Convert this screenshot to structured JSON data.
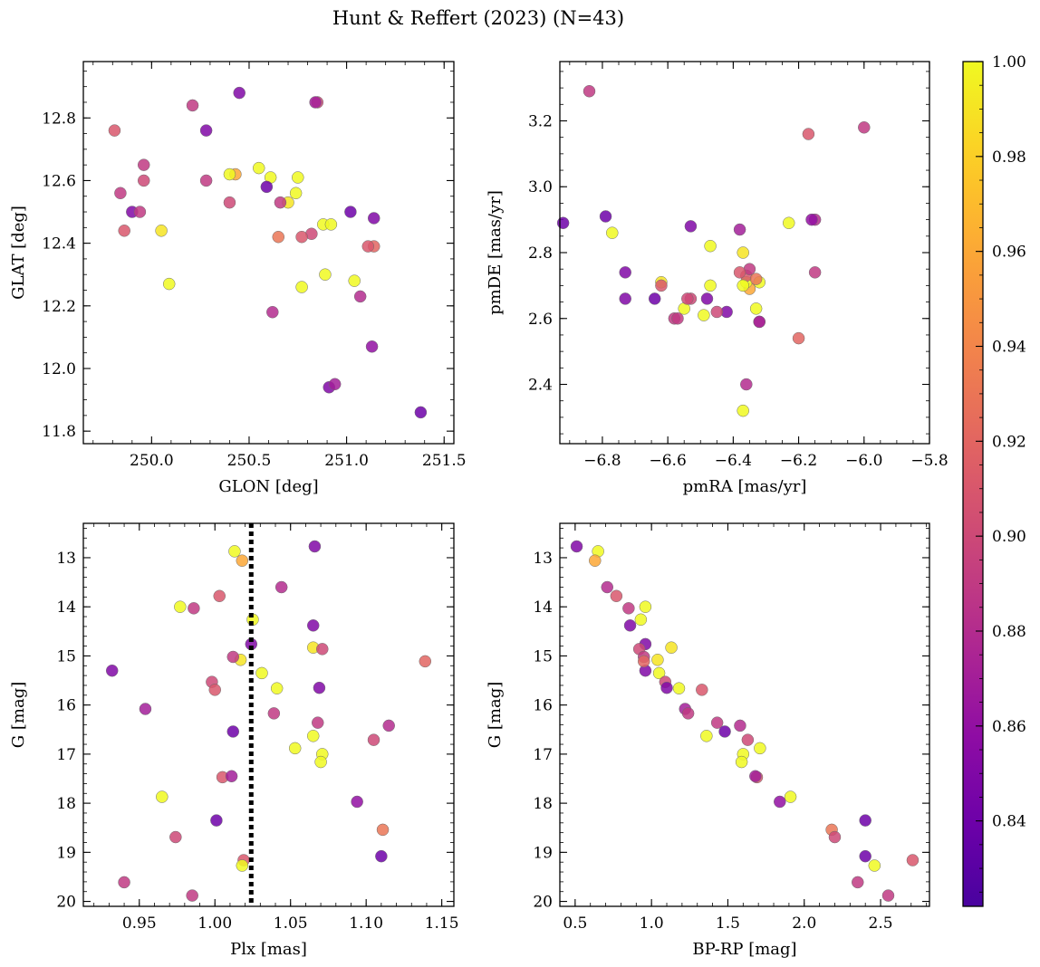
{
  "title": "Hunt & Reffert (2023) (N=43)",
  "chart_data": {
    "type": "scatter",
    "colorbar": {
      "colormap": "plasma",
      "range": [
        0.822,
        1.0
      ],
      "ticks": [
        0.84,
        0.86,
        0.88,
        0.9,
        0.92,
        0.94,
        0.96,
        0.98,
        1.0
      ],
      "tick_labels": [
        "0.84",
        "0.86",
        "0.88",
        "0.90",
        "0.92",
        "0.94",
        "0.96",
        "0.98",
        "1.00"
      ]
    },
    "columns": [
      "glon",
      "glat",
      "pmra",
      "pmde",
      "plx",
      "gmag",
      "bprp",
      "prob"
    ],
    "stars": [
      [
        250.55,
        12.64,
        -6.23,
        2.89,
        1.013,
        12.87,
        0.65,
        1.0
      ],
      [
        250.43,
        12.62,
        -6.35,
        2.69,
        1.018,
        13.06,
        0.63,
        0.96
      ],
      [
        250.45,
        12.88,
        -6.53,
        2.88,
        1.066,
        12.77,
        0.51,
        0.85
      ],
      [
        250.62,
        12.18,
        -6.36,
        2.4,
        1.044,
        13.6,
        0.71,
        0.88
      ],
      [
        249.81,
        12.76,
        -6.17,
        3.16,
        1.003,
        13.78,
        0.77,
        0.91
      ],
      [
        250.4,
        12.62,
        -6.47,
        2.82,
        0.977,
        14.0,
        0.96,
        1.0
      ],
      [
        250.21,
        12.84,
        -6.0,
        3.18,
        0.986,
        14.03,
        0.85,
        0.89
      ],
      [
        250.89,
        12.3,
        -6.49,
        2.61,
        1.025,
        14.26,
        0.93,
        1.0
      ],
      [
        250.91,
        11.94,
        -6.73,
        2.66,
        1.065,
        14.38,
        0.86,
        0.85
      ],
      [
        250.28,
        12.76,
        -6.48,
        2.66,
        1.024,
        14.76,
        0.96,
        0.85
      ],
      [
        250.7,
        12.53,
        -6.62,
        2.71,
        1.065,
        14.83,
        1.13,
        0.99
      ],
      [
        249.96,
        12.6,
        -6.53,
        2.66,
        1.071,
        14.86,
        0.92,
        0.9
      ],
      [
        250.05,
        12.44,
        -6.37,
        2.8,
        1.017,
        15.08,
        1.04,
        0.99
      ],
      [
        249.96,
        12.65,
        -6.58,
        2.6,
        1.012,
        15.02,
        0.95,
        0.89
      ],
      [
        250.61,
        12.61,
        -6.36,
        2.71,
        1.031,
        15.35,
        1.05,
        1.0
      ],
      [
        249.9,
        12.5,
        -6.73,
        2.74,
        0.932,
        15.3,
        0.96,
        0.85
      ],
      [
        251.14,
        12.39,
        -6.2,
        2.54,
        1.139,
        15.11,
        0.95,
        0.92
      ],
      [
        250.82,
        12.43,
        -6.32,
        2.59,
        0.998,
        15.53,
        1.09,
        0.9
      ],
      [
        250.77,
        12.42,
        -6.36,
        2.73,
        1.0,
        15.69,
        1.33,
        0.91
      ],
      [
        250.77,
        12.26,
        -6.32,
        2.71,
        1.041,
        15.66,
        1.18,
        1.0
      ],
      [
        251.14,
        12.48,
        -6.42,
        2.62,
        1.069,
        15.65,
        1.1,
        0.85
      ],
      [
        250.94,
        11.95,
        -6.38,
        2.87,
        0.954,
        16.08,
        1.22,
        0.87
      ],
      [
        249.84,
        12.56,
        -6.15,
        2.74,
        1.039,
        16.17,
        1.24,
        0.89
      ],
      [
        250.66,
        12.53,
        -6.35,
        2.75,
        1.068,
        16.36,
        1.43,
        0.89
      ],
      [
        251.07,
        12.23,
        -6.15,
        2.9,
        1.115,
        16.42,
        1.58,
        0.88
      ],
      [
        250.88,
        12.46,
        -6.47,
        2.7,
        1.065,
        16.63,
        1.36,
        1.0
      ],
      [
        251.38,
        11.86,
        -6.79,
        2.91,
        1.012,
        16.54,
        1.48,
        0.84
      ],
      [
        250.75,
        12.61,
        -6.37,
        2.7,
        1.053,
        16.88,
        1.71,
        1.0
      ],
      [
        250.85,
        12.85,
        -6.45,
        2.62,
        1.105,
        16.71,
        1.63,
        0.9
      ],
      [
        250.74,
        12.56,
        -6.55,
        2.63,
        1.071,
        17.0,
        1.6,
        1.0
      ],
      [
        251.04,
        12.28,
        -6.33,
        2.63,
        1.07,
        17.16,
        1.59,
        1.0
      ],
      [
        249.86,
        12.44,
        -6.62,
        2.7,
        1.005,
        17.47,
        1.69,
        0.91
      ],
      [
        250.84,
        12.85,
        -6.32,
        2.59,
        1.011,
        17.45,
        1.68,
        0.87
      ],
      [
        250.09,
        12.27,
        -6.77,
        2.86,
        0.965,
        17.87,
        1.91,
        1.0
      ],
      [
        251.13,
        12.07,
        -6.16,
        2.9,
        1.094,
        17.97,
        1.84,
        0.86
      ],
      [
        251.02,
        12.5,
        -6.92,
        2.89,
        1.001,
        18.35,
        2.4,
        0.84
      ],
      [
        250.65,
        12.42,
        -6.33,
        2.72,
        1.111,
        18.54,
        2.18,
        0.93
      ],
      [
        250.4,
        12.53,
        -6.54,
        2.66,
        0.974,
        18.69,
        2.2,
        0.9
      ],
      [
        250.59,
        12.58,
        -6.64,
        2.66,
        1.11,
        19.08,
        2.4,
        0.84
      ],
      [
        251.11,
        12.39,
        -6.38,
        2.74,
        1.019,
        19.16,
        2.71,
        0.91
      ],
      [
        250.92,
        12.46,
        -6.37,
        2.32,
        1.018,
        19.27,
        2.46,
        1.0
      ],
      [
        249.94,
        12.5,
        -6.84,
        3.29,
        0.94,
        19.61,
        2.35,
        0.89
      ],
      [
        250.28,
        12.6,
        -6.57,
        2.6,
        0.985,
        19.88,
        2.55,
        0.89
      ]
    ],
    "vline_plx": 1.024,
    "panels": [
      {
        "id": "glon-glat",
        "x_col": 0,
        "y_col": 1,
        "xlabel": "GLON [deg]",
        "ylabel": "GLAT [deg]",
        "xlim": [
          249.65,
          251.55
        ],
        "ylim": [
          11.76,
          12.98
        ],
        "invert_y": false,
        "xticks": [
          250.0,
          250.5,
          251.0,
          251.5
        ],
        "xtick_labels": [
          "250.0",
          "250.5",
          "251.0",
          "251.5"
        ],
        "yticks": [
          11.8,
          12.0,
          12.2,
          12.4,
          12.6,
          12.8
        ],
        "ytick_labels": [
          "11.8",
          "12.0",
          "12.2",
          "12.4",
          "12.6",
          "12.8"
        ],
        "xminor_step": 0.1,
        "yminor_step": 0.05
      },
      {
        "id": "pmra-pmde",
        "x_col": 2,
        "y_col": 3,
        "xlabel": "pmRA [mas/yr]",
        "ylabel": "pmDE [mas/yr]",
        "xlim": [
          -6.93,
          -5.8
        ],
        "ylim": [
          2.22,
          3.38
        ],
        "invert_y": false,
        "xticks": [
          -6.8,
          -6.6,
          -6.4,
          -6.2,
          -6.0,
          -5.8
        ],
        "xtick_labels": [
          "−6.8",
          "−6.6",
          "−6.4",
          "−6.2",
          "−6.0",
          "−5.8"
        ],
        "yticks": [
          2.4,
          2.6,
          2.8,
          3.0,
          3.2
        ],
        "ytick_labels": [
          "2.4",
          "2.6",
          "2.8",
          "3.0",
          "3.2"
        ],
        "xminor_step": 0.05,
        "yminor_step": 0.05
      },
      {
        "id": "plx-g",
        "x_col": 4,
        "y_col": 5,
        "xlabel": "Plx [mas]",
        "ylabel": "G [mag]",
        "xlim": [
          0.913,
          1.158
        ],
        "ylim": [
          12.3,
          20.1
        ],
        "invert_y": true,
        "xticks": [
          0.95,
          1.0,
          1.05,
          1.1,
          1.15
        ],
        "xtick_labels": [
          "0.95",
          "1.00",
          "1.05",
          "1.10",
          "1.15"
        ],
        "yticks": [
          13,
          14,
          15,
          16,
          17,
          18,
          19,
          20
        ],
        "ytick_labels": [
          "13",
          "14",
          "15",
          "16",
          "17",
          "18",
          "19",
          "20"
        ],
        "xminor_step": 0.01,
        "yminor_step": 0.2
      },
      {
        "id": "bprp-g",
        "x_col": 6,
        "y_col": 5,
        "xlabel": "BP-RP [mag]",
        "ylabel": "G [mag]",
        "xlim": [
          0.4,
          2.82
        ],
        "ylim": [
          12.3,
          20.1
        ],
        "invert_y": true,
        "xticks": [
          0.5,
          1.0,
          1.5,
          2.0,
          2.5
        ],
        "xtick_labels": [
          "0.5",
          "1.0",
          "1.5",
          "2.0",
          "2.5"
        ],
        "yticks": [
          13,
          14,
          15,
          16,
          17,
          18,
          19,
          20
        ],
        "ytick_labels": [
          "13",
          "14",
          "15",
          "16",
          "17",
          "18",
          "19",
          "20"
        ],
        "xminor_step": 0.1,
        "yminor_step": 0.2
      }
    ]
  }
}
